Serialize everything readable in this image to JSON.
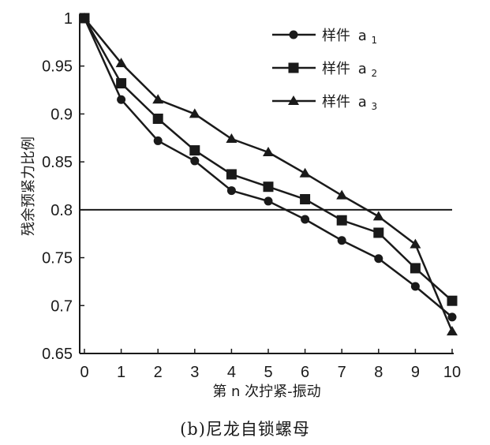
{
  "chart_data": {
    "type": "line",
    "x": [
      0,
      1,
      2,
      3,
      4,
      5,
      6,
      7,
      8,
      9,
      10
    ],
    "x_ticks": [
      "0",
      "1",
      "2",
      "3",
      "4",
      "5",
      "6",
      "7",
      "8",
      "9",
      "10"
    ],
    "y_ticks": [
      "0.65",
      "0.7",
      "0.75",
      "0.8",
      "0.85",
      "0.9",
      "0.95",
      "1"
    ],
    "xlim": [
      0,
      10
    ],
    "ylim": [
      0.65,
      1.0
    ],
    "xlabel": "第 n 次拧紧-振动",
    "ylabel": "残余预紧力比例",
    "reference_line": 0.8,
    "legend_position": "top-right",
    "series": [
      {
        "name": "样件",
        "subscript": "1",
        "prefix": "a",
        "marker": "circle",
        "values": [
          1.0,
          0.915,
          0.872,
          0.851,
          0.82,
          0.809,
          0.79,
          0.768,
          0.749,
          0.72,
          0.688
        ]
      },
      {
        "name": "样件",
        "subscript": "2",
        "prefix": "a",
        "marker": "square",
        "values": [
          1.0,
          0.932,
          0.895,
          0.862,
          0.837,
          0.824,
          0.811,
          0.789,
          0.776,
          0.739,
          0.705
        ]
      },
      {
        "name": "样件",
        "subscript": "3",
        "prefix": "a",
        "marker": "triangle",
        "values": [
          1.0,
          0.953,
          0.915,
          0.9,
          0.874,
          0.86,
          0.838,
          0.815,
          0.793,
          0.764,
          0.673
        ]
      }
    ]
  },
  "caption": "(b)尼龙自锁螺母"
}
